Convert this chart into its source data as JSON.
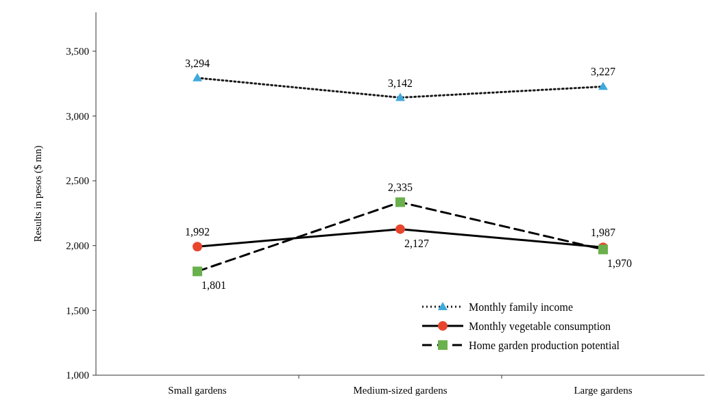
{
  "chart_data": {
    "type": "line",
    "ylabel": "Results in pesos ($ mn)",
    "categories": [
      "Small gardens",
      "Medium-sized gardens",
      "Large gardens"
    ],
    "series": [
      {
        "name": "Monthly family income",
        "color": "#1a1a1a",
        "colors": [
          "#3fa9dc",
          "#3fa9dc",
          "#3fa9dc"
        ],
        "marker": "triangle",
        "line_style": "dotted",
        "values": [
          3294,
          3142,
          3227
        ],
        "value_labels": [
          "3,294",
          "3,142",
          "3,227"
        ]
      },
      {
        "name": "Monthly vegetable consumption",
        "color": "#000000",
        "colors": [
          "#e8452f",
          "#e8452f",
          "#e8452f"
        ],
        "marker": "circle",
        "line_style": "solid",
        "values": [
          1992,
          2127,
          1987
        ],
        "value_labels": [
          "1,992",
          "2,127",
          "1,987"
        ]
      },
      {
        "name": "Home garden production potential",
        "color": "#000000",
        "colors": [
          "#6ab04c",
          "#6ab04c",
          "#6ab04c"
        ],
        "marker": "square",
        "line_style": "dashed",
        "values": [
          1801,
          2335,
          1970
        ],
        "value_labels": [
          "1,801",
          "2,335",
          "1,970"
        ]
      }
    ],
    "ylim": [
      1000,
      3800
    ],
    "yticks": [
      {
        "value": 1000,
        "label": "1,000"
      },
      {
        "value": 1500,
        "label": "1,500"
      },
      {
        "value": 2000,
        "label": "2,000"
      },
      {
        "value": 2500,
        "label": "2,500"
      },
      {
        "value": 3000,
        "label": "3,000"
      },
      {
        "value": 3500,
        "label": "3,500"
      }
    ],
    "grid": false,
    "legend": "bottom right"
  }
}
